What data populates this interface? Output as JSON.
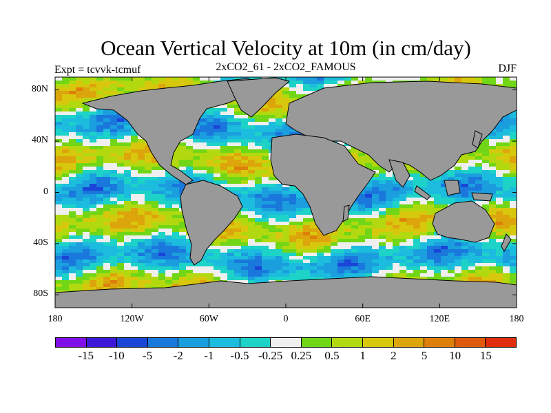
{
  "title": "Ocean Vertical Velocity at 10m (in cm/day)",
  "expt_label": "Expt = tcvvk-tcmuf",
  "subtitle": "2xCO2_61 - 2xCO2_FAMOUS",
  "season": "DJF",
  "map": {
    "land_color": "#999999",
    "lat_labels": [
      "80N",
      "40N",
      "0",
      "40S",
      "80S"
    ],
    "lat_values": [
      80,
      40,
      0,
      -40,
      -80
    ],
    "lon_labels": [
      "180",
      "120W",
      "60W",
      "0",
      "60E",
      "120E",
      "180"
    ],
    "lon_values": [
      -180,
      -120,
      -60,
      0,
      60,
      120,
      180
    ],
    "lat_range": [
      -90,
      90
    ],
    "lon_range": [
      -180,
      180
    ]
  },
  "colorbar": {
    "colors": [
      "#7f0fe6",
      "#3c18d8",
      "#1a45d6",
      "#1a78dc",
      "#1b9ede",
      "#1cbcde",
      "#1dd2c6",
      "#efefef",
      "#70d616",
      "#b2d90f",
      "#d7c80d",
      "#dda50c",
      "#de7f0c",
      "#df5a0d",
      "#df2c0b"
    ],
    "labels": [
      "-15",
      "-10",
      "-5",
      "-2",
      "-1",
      "-0.5",
      "-0.25",
      "0.25",
      "0.5",
      "1",
      "2",
      "5",
      "10",
      "15"
    ]
  }
}
